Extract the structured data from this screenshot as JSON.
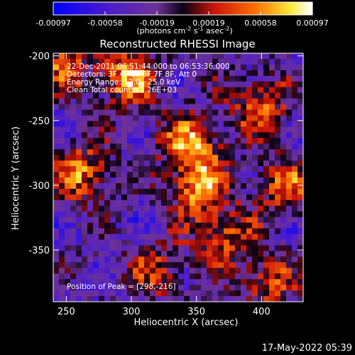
{
  "colorbar": {
    "ticks": [
      "-0.00097",
      "-0.00058",
      "-0.00019",
      "0.00019",
      "0.00058",
      "0.00097"
    ],
    "units_prefix": "(photons cm",
    "units_sup1": "-2",
    "units_mid": " s",
    "units_sup2": "-1",
    "units_mid2": " asec",
    "units_sup3": "-2",
    "units_suffix": ")"
  },
  "chart_data": {
    "type": "heatmap",
    "title": "Reconstructed RHESSI Image",
    "xlabel": "Heliocentric X (arcsec)",
    "ylabel": "Heliocentric Y (arcsec)",
    "xlim": [
      240,
      432
    ],
    "ylim": [
      -390,
      -198
    ],
    "x_ticks": [
      "250",
      "300",
      "350",
      "400"
    ],
    "y_ticks": [
      "-200",
      "-250",
      "-300",
      "-350"
    ],
    "color_range": [
      -0.00097,
      0.00097
    ],
    "colormap": "rhessi",
    "annotations": [
      "22-Dec-2011 06:51:44.000 to 06:53:36.000",
      "Detectors: 3F 4F 5F 6F 7F 8F, Att 0",
      "Energy Range: 12.0 - 25.0 keV",
      "Clean    Total counts: 5.26E+03"
    ],
    "peak_label": "Position of Peak = [298,-216]",
    "peak": [
      298,
      -216
    ],
    "sources": [
      {
        "x": 262,
        "y": -290,
        "value": 0.00085
      },
      {
        "x": 345,
        "y": -268,
        "value": 0.00095
      },
      {
        "x": 352,
        "y": -302,
        "value": 0.00088
      },
      {
        "x": 298,
        "y": -216,
        "value": 0.00097
      },
      {
        "x": 398,
        "y": -238,
        "value": 0.00078
      },
      {
        "x": 418,
        "y": -300,
        "value": 0.00075
      },
      {
        "x": 248,
        "y": -205,
        "value": 0.0007
      },
      {
        "x": 320,
        "y": -365,
        "value": 0.0006
      },
      {
        "x": 370,
        "y": -340,
        "value": 0.0007
      },
      {
        "x": 405,
        "y": -375,
        "value": 0.00065
      }
    ]
  },
  "footer": {
    "timestamp": "17-May-2022 05:39"
  }
}
